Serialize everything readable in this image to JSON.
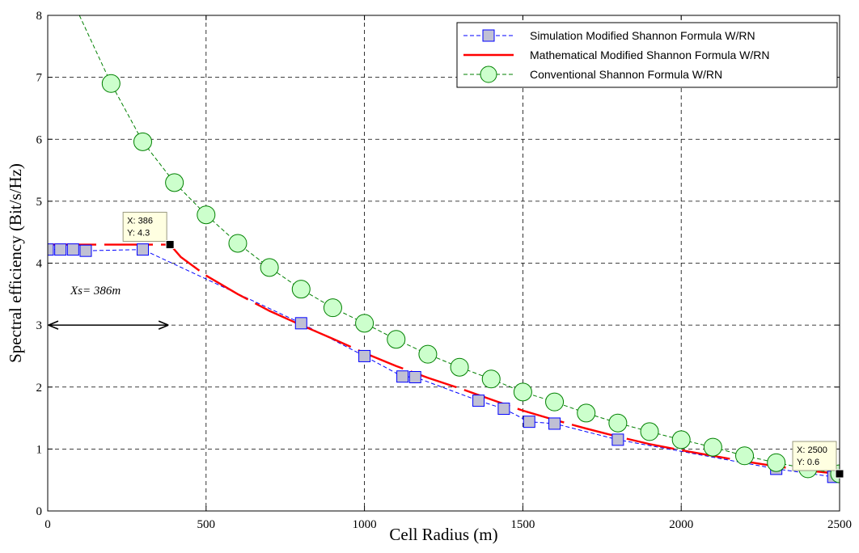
{
  "chart_data": {
    "type": "line",
    "xlabel": "Cell Radius (m)",
    "ylabel": "Spectral efficiency (Bit/s/Hz)",
    "xlim": [
      0,
      2500
    ],
    "ylim": [
      0,
      8
    ],
    "xticks": [
      0,
      500,
      1000,
      1500,
      2000,
      2500
    ],
    "yticks": [
      0,
      1,
      2,
      3,
      4,
      5,
      6,
      7,
      8
    ],
    "grid": true,
    "legend_position": "top-right",
    "series": [
      {
        "name": "Simulation Modified Shannon Formula W/RN",
        "color": "#0000ff",
        "marker": "square",
        "marker_fill": "#c0c0d4",
        "line_style": "dashed",
        "points": [
          [
            0,
            4.22
          ],
          [
            40,
            4.22
          ],
          [
            80,
            4.22
          ],
          [
            120,
            4.2
          ],
          [
            300,
            4.22
          ],
          [
            800,
            3.03
          ],
          [
            1000,
            2.5
          ],
          [
            1120,
            2.17
          ],
          [
            1160,
            2.16
          ],
          [
            1360,
            1.78
          ],
          [
            1440,
            1.65
          ],
          [
            1520,
            1.44
          ],
          [
            1600,
            1.41
          ],
          [
            1800,
            1.15
          ],
          [
            2300,
            0.68
          ],
          [
            2480,
            0.55
          ]
        ]
      },
      {
        "name": "Mathematical Modified Shannon Formula W/RN",
        "color": "#ff0000",
        "marker": "none",
        "line_style": "solid",
        "points": [
          [
            0,
            4.3
          ],
          [
            386,
            4.3
          ],
          [
            420,
            4.1
          ],
          [
            500,
            3.8
          ],
          [
            600,
            3.5
          ],
          [
            700,
            3.23
          ],
          [
            800,
            3.0
          ],
          [
            900,
            2.78
          ],
          [
            1000,
            2.55
          ],
          [
            1100,
            2.34
          ],
          [
            1200,
            2.15
          ],
          [
            1300,
            1.98
          ],
          [
            1400,
            1.8
          ],
          [
            1500,
            1.62
          ],
          [
            1600,
            1.47
          ],
          [
            1700,
            1.33
          ],
          [
            1800,
            1.2
          ],
          [
            1900,
            1.08
          ],
          [
            2000,
            0.98
          ],
          [
            2100,
            0.89
          ],
          [
            2200,
            0.8
          ],
          [
            2300,
            0.72
          ],
          [
            2400,
            0.65
          ],
          [
            2500,
            0.6
          ]
        ]
      },
      {
        "name": "Conventional Shannon Formula W/RN",
        "color": "#008000",
        "marker": "circle",
        "marker_fill": "#ccffcc",
        "line_style": "dashed",
        "points": [
          [
            100,
            8.0
          ],
          [
            200,
            6.9
          ],
          [
            300,
            5.96
          ],
          [
            400,
            5.3
          ],
          [
            500,
            4.78
          ],
          [
            600,
            4.32
          ],
          [
            700,
            3.93
          ],
          [
            800,
            3.58
          ],
          [
            900,
            3.28
          ],
          [
            1000,
            3.03
          ],
          [
            1100,
            2.77
          ],
          [
            1200,
            2.53
          ],
          [
            1300,
            2.32
          ],
          [
            1400,
            2.13
          ],
          [
            1500,
            1.92
          ],
          [
            1600,
            1.76
          ],
          [
            1700,
            1.58
          ],
          [
            1800,
            1.42
          ],
          [
            1900,
            1.28
          ],
          [
            2000,
            1.15
          ],
          [
            2100,
            1.03
          ],
          [
            2200,
            0.89
          ],
          [
            2300,
            0.78
          ],
          [
            2400,
            0.68
          ],
          [
            2500,
            0.6
          ]
        ]
      }
    ],
    "datatips": [
      {
        "x": 386,
        "y": 4.3,
        "line1": "X: 386",
        "line2": "Y: 4.3"
      },
      {
        "x": 2500,
        "y": 0.6,
        "line1": "X: 2500",
        "line2": "Y: 0.6"
      }
    ],
    "annotations": [
      {
        "text": "Xs= 386m",
        "arrow_from_x": 0,
        "arrow_to_x": 386,
        "arrow_y": 3
      }
    ]
  }
}
